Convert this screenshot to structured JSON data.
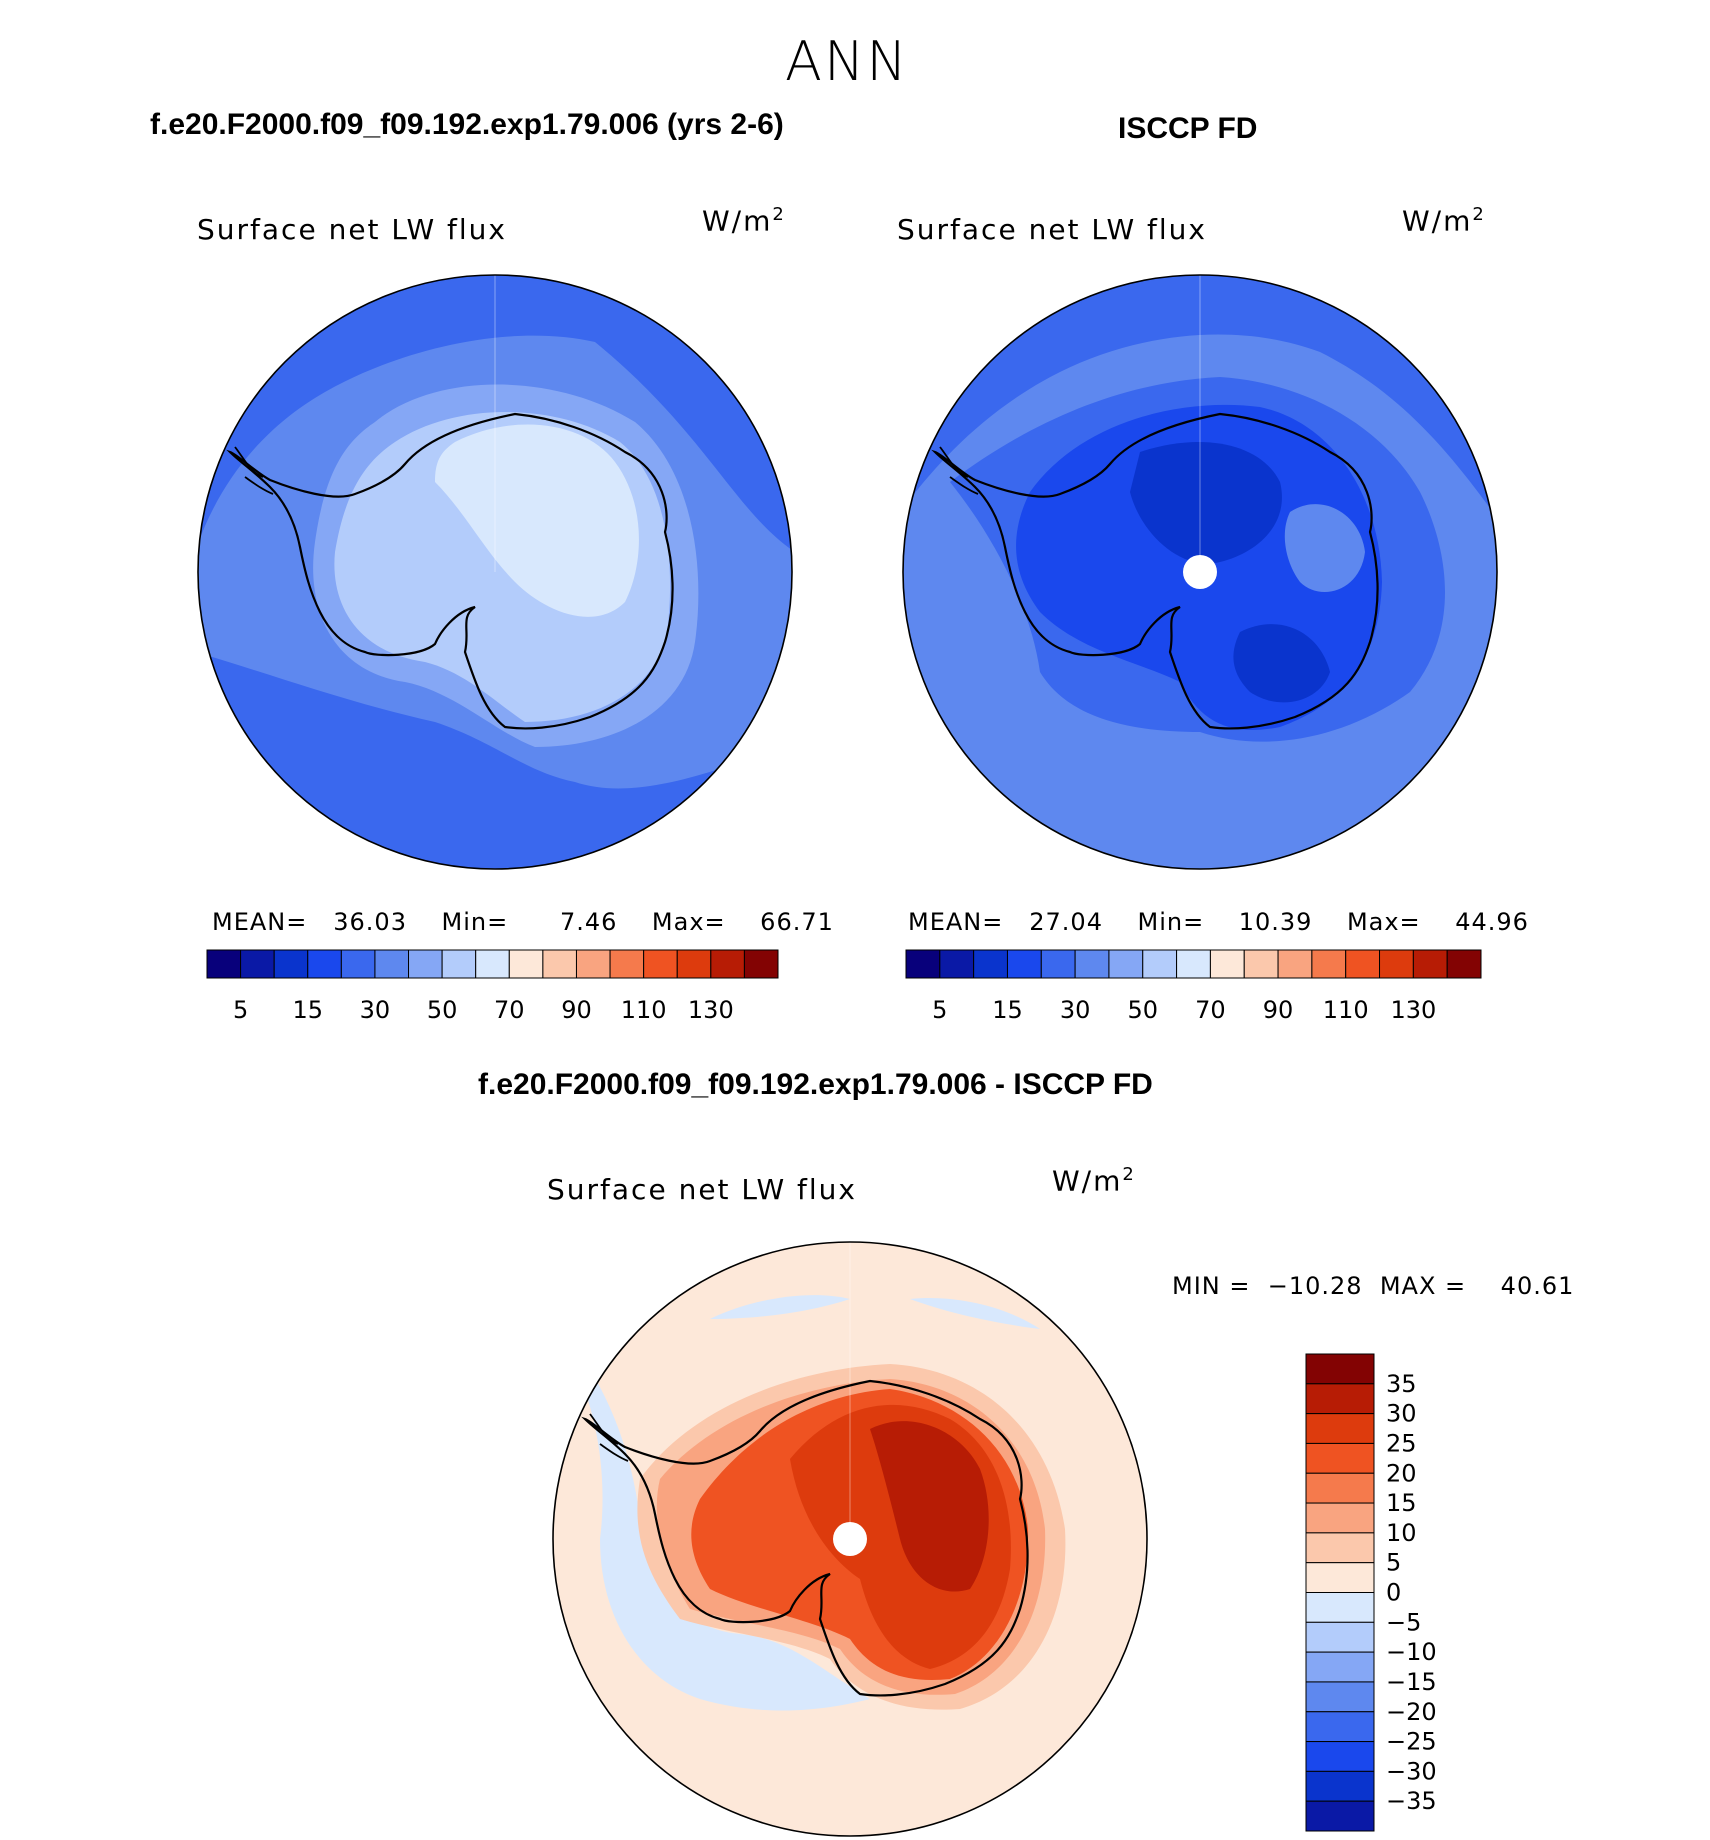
{
  "chart_data": {
    "type": "contour-map",
    "title": "ANN",
    "colors": {
      "blue_scale": [
        "#08007b",
        "#0a19a6",
        "#0a34cd",
        "#1a48ed",
        "#3a68ee",
        "#5e88ef",
        "#85a7f5",
        "#b3ccfb",
        "#d8e8fd"
      ],
      "red_scale": [
        "#fde8d9",
        "#fbc8ac",
        "#f9a480",
        "#f57a4c",
        "#ef5322",
        "#dd3b0d",
        "#b71c05",
        "#830303"
      ],
      "white": "#ffffff",
      "coast": "#000000"
    },
    "panels": [
      {
        "heading": "f.e20.F2000.f09_f09.192.exp1.79.006 (yrs 2-6)",
        "variable": "Surface net LW flux",
        "units": "W/m",
        "units_exp": "2",
        "stats": {
          "mean_label": "MEAN=",
          "mean": "36.03",
          "min_label": "Min=",
          "min": "7.46",
          "max_label": "Max=",
          "max": "66.71"
        },
        "colorbar_ticks": [
          "5",
          "15",
          "30",
          "50",
          "70",
          "90",
          "110",
          "130"
        ]
      },
      {
        "heading": "ISCCP FD",
        "variable": "Surface net LW flux",
        "units": "W/m",
        "units_exp": "2",
        "stats": {
          "mean_label": "MEAN=",
          "mean": "27.04",
          "min_label": "Min=",
          "min": "10.39",
          "max_label": "Max=",
          "max": "44.96"
        },
        "colorbar_ticks": [
          "5",
          "15",
          "30",
          "50",
          "70",
          "90",
          "110",
          "130"
        ]
      },
      {
        "heading": "f.e20.F2000.f09_f09.192.exp1.79.006 - ISCCP FD",
        "variable": "Surface net LW flux",
        "units": "W/m",
        "units_exp": "2",
        "stats": {
          "min_label": "MIN =",
          "min": "−10.28",
          "max_label": "MAX =",
          "max": "40.61"
        },
        "colorbar_ticks": [
          "35",
          "30",
          "25",
          "20",
          "15",
          "10",
          "5",
          "0",
          "−5",
          "−10",
          "−15",
          "−20",
          "−25",
          "−30",
          "−35"
        ]
      }
    ]
  }
}
